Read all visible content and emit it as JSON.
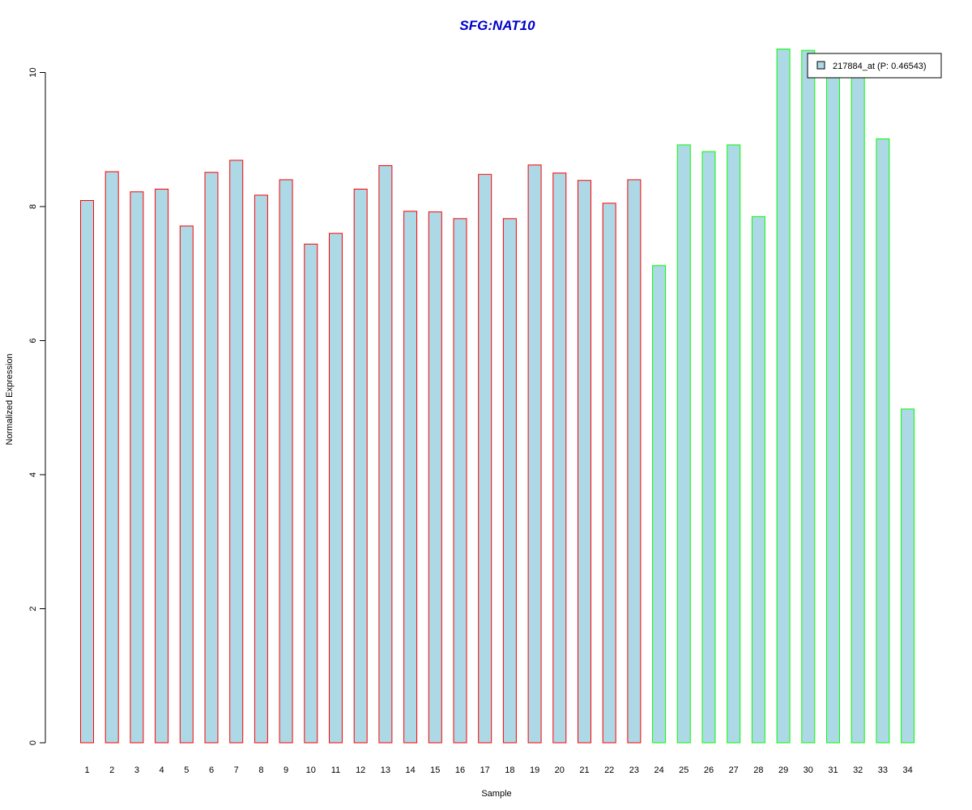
{
  "chart_data": {
    "type": "bar",
    "title": "SFG:NAT10",
    "xlabel": "Sample",
    "ylabel": "Normalized Expression",
    "ylim": [
      0,
      10.4
    ],
    "yticks": [
      0,
      2,
      4,
      6,
      8,
      10
    ],
    "categories": [
      "1",
      "2",
      "3",
      "4",
      "5",
      "6",
      "7",
      "8",
      "9",
      "10",
      "11",
      "12",
      "13",
      "14",
      "15",
      "16",
      "17",
      "18",
      "19",
      "20",
      "21",
      "22",
      "23",
      "24",
      "25",
      "26",
      "27",
      "28",
      "29",
      "30",
      "31",
      "32",
      "33",
      "34"
    ],
    "series": [
      {
        "name": "217884_at (P: 0.46543)",
        "values": [
          8.09,
          8.52,
          8.22,
          8.26,
          7.71,
          8.51,
          8.69,
          8.17,
          8.4,
          7.44,
          7.6,
          8.26,
          8.61,
          7.93,
          7.92,
          7.82,
          8.48,
          7.82,
          8.62,
          8.5,
          8.39,
          8.05,
          8.4,
          7.12,
          8.92,
          8.82,
          8.92,
          7.85,
          10.35,
          10.33,
          9.95,
          9.95,
          9.01,
          4.98
        ]
      }
    ],
    "bar_fill": "#add8e6",
    "bar_border_colors": [
      "#ff0000",
      "#ff0000",
      "#ff0000",
      "#ff0000",
      "#ff0000",
      "#ff0000",
      "#ff0000",
      "#ff0000",
      "#ff0000",
      "#ff0000",
      "#ff0000",
      "#ff0000",
      "#ff0000",
      "#ff0000",
      "#ff0000",
      "#ff0000",
      "#ff0000",
      "#ff0000",
      "#ff0000",
      "#ff0000",
      "#ff0000",
      "#ff0000",
      "#ff0000",
      "#00ff00",
      "#00ff00",
      "#00ff00",
      "#00ff00",
      "#00ff00",
      "#00ff00",
      "#00ff00",
      "#00ff00",
      "#00ff00",
      "#00ff00",
      "#00ff00"
    ],
    "title_color": "#0000cd",
    "legend_position": "top-right",
    "grid": false
  }
}
